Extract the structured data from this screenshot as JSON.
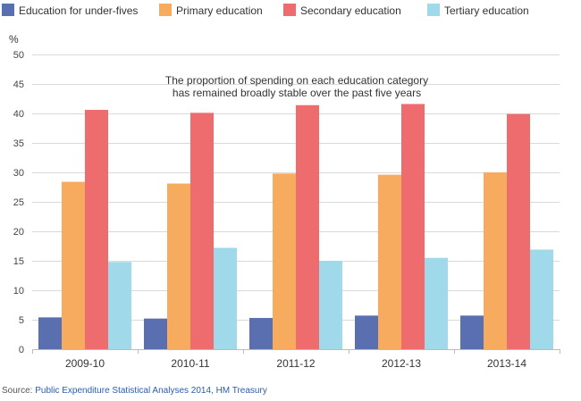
{
  "chart_data": {
    "type": "bar",
    "ylabel": "%",
    "ylim": [
      0,
      50
    ],
    "yticks": [
      0,
      5,
      10,
      15,
      20,
      25,
      30,
      35,
      40,
      45,
      50
    ],
    "categories": [
      "2009-10",
      "2010-11",
      "2011-12",
      "2012-13",
      "2013-14"
    ],
    "series": [
      {
        "name": "Education for under-fives",
        "color": "#5a6fb0",
        "values": [
          5.4,
          5.2,
          5.3,
          5.7,
          5.7
        ]
      },
      {
        "name": "Primary education",
        "color": "#f7ab5e",
        "values": [
          28.4,
          28.1,
          29.8,
          29.6,
          30.0
        ]
      },
      {
        "name": "Secondary education",
        "color": "#ee6b6e",
        "values": [
          40.6,
          40.1,
          41.4,
          41.6,
          39.9
        ]
      },
      {
        "name": "Tertiary education",
        "color": "#9fd9ea",
        "values": [
          14.8,
          17.2,
          15.0,
          15.5,
          16.9
        ]
      }
    ],
    "annotation": {
      "line1": "The proportion of spending on each education category",
      "line2": "has remained broadly stable over the past five years"
    },
    "grid": true,
    "legend": "top"
  },
  "source": {
    "prefix": "Source: ",
    "link": "Public Expenditure Statistical Analyses 2014, HM Treasury"
  }
}
